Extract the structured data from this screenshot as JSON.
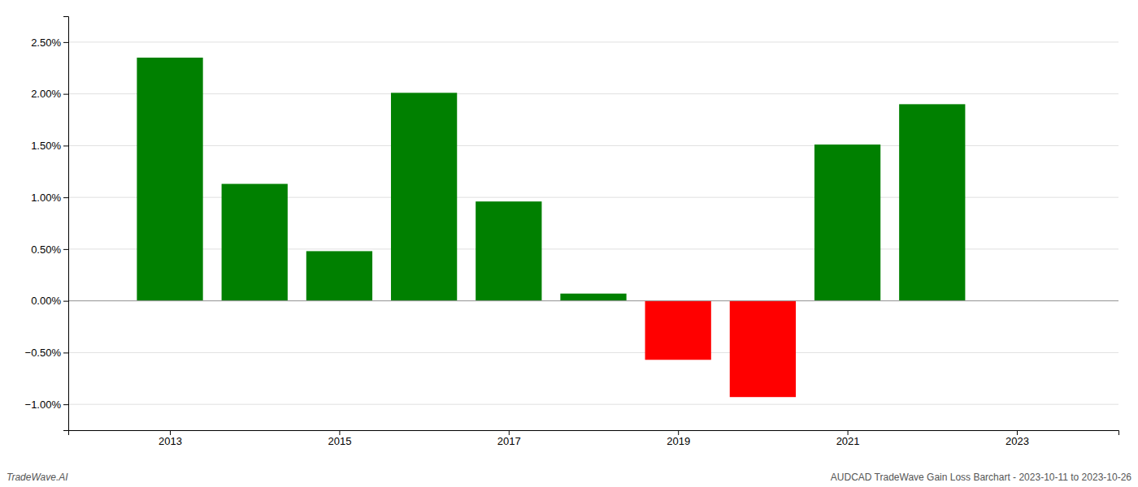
{
  "chart_data": {
    "type": "bar",
    "x": [
      2013,
      2014,
      2015,
      2016,
      2017,
      2018,
      2019,
      2020,
      2021,
      2022
    ],
    "values": [
      2.35,
      1.13,
      0.48,
      2.01,
      0.96,
      0.07,
      -0.57,
      -0.93,
      1.51,
      1.9
    ],
    "colors": [
      "#008000",
      "#008000",
      "#008000",
      "#008000",
      "#008000",
      "#008000",
      "#ff0000",
      "#ff0000",
      "#008000",
      "#008000"
    ],
    "xlim": [
      2011.8,
      2024.2
    ],
    "xticks": [
      2013,
      2015,
      2017,
      2019,
      2021,
      2023
    ],
    "ylim": [
      -1.25,
      2.75
    ],
    "yticks": [
      {
        "value": -1.0,
        "label": "−1.00%"
      },
      {
        "value": -0.5,
        "label": "−0.50%"
      },
      {
        "value": 0.0,
        "label": "0.00%"
      },
      {
        "value": 0.5,
        "label": "0.50%"
      },
      {
        "value": 1.0,
        "label": "1.00%"
      },
      {
        "value": 1.5,
        "label": "1.50%"
      },
      {
        "value": 2.0,
        "label": "2.00%"
      },
      {
        "value": 2.5,
        "label": "2.50%"
      }
    ],
    "grid": true,
    "annotations": [
      "TradeWave.AI",
      "AUDCAD TradeWave Gain Loss Barchart - 2023-10-11 to 2023-10-26"
    ]
  }
}
